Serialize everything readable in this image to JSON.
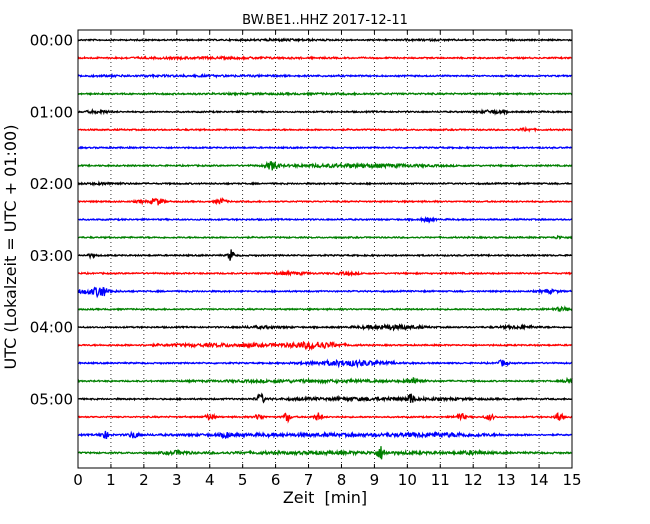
{
  "chart_data": {
    "type": "line",
    "title": "BW.BE1..HHZ 2017-12-11",
    "xlabel": "Zeit  [min]",
    "ylabel": "UTC (Lokalzeit = UTC + 01:00)",
    "xlim": [
      0,
      15
    ],
    "xticks": [
      0,
      1,
      2,
      3,
      4,
      5,
      6,
      7,
      8,
      9,
      10,
      11,
      12,
      13,
      14,
      15
    ],
    "xtick_labels": [
      "0",
      "1",
      "2",
      "3",
      "4",
      "5",
      "6",
      "7",
      "8",
      "9",
      "10",
      "11",
      "12",
      "13",
      "14",
      "15"
    ],
    "ytick_labels": [
      "00:00",
      "01:00",
      "02:00",
      "03:00",
      "04:00",
      "05:00"
    ],
    "grid": "vertical dotted",
    "color_cycle": [
      "#000000",
      "#ff0000",
      "#0000ff",
      "#008000"
    ],
    "rows": [
      {
        "start": "00:00",
        "color": "#000000",
        "events": [
          {
            "t": 6.3,
            "amp": 0.5,
            "width": 1.6
          },
          {
            "t": 10.6,
            "amp": 0.3,
            "width": 1.0
          }
        ]
      },
      {
        "start": "00:15",
        "color": "#ff0000",
        "events": [
          {
            "t": 4.0,
            "amp": 0.5,
            "width": 4.0
          }
        ]
      },
      {
        "start": "00:30",
        "color": "#0000ff",
        "events": [
          {
            "t": 3.0,
            "amp": 0.4,
            "width": 6.0
          }
        ]
      },
      {
        "start": "00:45",
        "color": "#008000",
        "events": [
          {
            "t": 7.0,
            "amp": 0.3,
            "width": 6.0
          }
        ]
      },
      {
        "start": "01:00",
        "color": "#000000",
        "events": [
          {
            "t": 0.6,
            "amp": 1.2,
            "width": 0.5
          },
          {
            "t": 12.6,
            "amp": 1.5,
            "width": 0.5
          }
        ]
      },
      {
        "start": "01:15",
        "color": "#ff0000",
        "events": [
          {
            "t": 13.6,
            "amp": 1.2,
            "width": 0.3
          }
        ]
      },
      {
        "start": "01:30",
        "color": "#0000ff",
        "events": []
      },
      {
        "start": "01:45",
        "color": "#008000",
        "events": [
          {
            "t": 5.9,
            "amp": 4.0,
            "width": 0.25
          },
          {
            "t": 8.5,
            "amp": 1.5,
            "width": 3.0
          }
        ]
      },
      {
        "start": "02:00",
        "color": "#000000",
        "events": [
          {
            "t": 0.8,
            "amp": 0.6,
            "width": 1.0
          }
        ]
      },
      {
        "start": "02:15",
        "color": "#ff0000",
        "events": [
          {
            "t": 2.4,
            "amp": 3.5,
            "width": 0.25
          },
          {
            "t": 4.35,
            "amp": 2.5,
            "width": 0.2
          },
          {
            "t": 1.9,
            "amp": 1.2,
            "width": 0.2
          }
        ]
      },
      {
        "start": "02:30",
        "color": "#0000ff",
        "events": [
          {
            "t": 10.6,
            "amp": 2.0,
            "width": 0.25
          }
        ]
      },
      {
        "start": "02:45",
        "color": "#008000",
        "events": [
          {
            "t": 14.6,
            "amp": 1.2,
            "width": 0.2
          }
        ]
      },
      {
        "start": "03:00",
        "color": "#000000",
        "events": [
          {
            "t": 4.65,
            "amp": 6.0,
            "width": 0.12
          },
          {
            "t": 0.4,
            "amp": 1.5,
            "width": 0.2
          }
        ]
      },
      {
        "start": "03:15",
        "color": "#ff0000",
        "events": [
          {
            "t": 6.5,
            "amp": 1.0,
            "width": 0.8
          },
          {
            "t": 8.2,
            "amp": 1.0,
            "width": 0.5
          }
        ]
      },
      {
        "start": "03:30",
        "color": "#0000ff",
        "events": [
          {
            "t": 0.4,
            "amp": 2.5,
            "width": 0.8
          },
          {
            "t": 0.7,
            "amp": 4.5,
            "width": 0.2
          },
          {
            "t": 14.3,
            "amp": 1.5,
            "width": 0.4
          }
        ]
      },
      {
        "start": "03:45",
        "color": "#008000",
        "events": [
          {
            "t": 14.7,
            "amp": 1.5,
            "width": 0.4
          }
        ]
      },
      {
        "start": "04:00",
        "color": "#000000",
        "events": [
          {
            "t": 9.5,
            "amp": 2.0,
            "width": 1.2
          },
          {
            "t": 5.6,
            "amp": 0.8,
            "width": 1.0
          },
          {
            "t": 13.4,
            "amp": 1.2,
            "width": 0.8
          }
        ]
      },
      {
        "start": "04:15",
        "color": "#ff0000",
        "events": [
          {
            "t": 7.2,
            "amp": 3.0,
            "width": 1.0
          },
          {
            "t": 4.6,
            "amp": 1.2,
            "width": 3.0
          }
        ]
      },
      {
        "start": "04:30",
        "color": "#0000ff",
        "events": [
          {
            "t": 8.2,
            "amp": 2.5,
            "width": 1.6
          },
          {
            "t": 12.9,
            "amp": 3.0,
            "width": 0.2
          }
        ]
      },
      {
        "start": "04:45",
        "color": "#008000",
        "events": [
          {
            "t": 10.2,
            "amp": 2.5,
            "width": 0.3
          },
          {
            "t": 14.95,
            "amp": 4.0,
            "width": 0.2
          },
          {
            "t": 7.0,
            "amp": 1.0,
            "width": 4.0
          }
        ]
      },
      {
        "start": "05:00",
        "color": "#000000",
        "events": [
          {
            "t": 5.55,
            "amp": 5.0,
            "width": 0.15
          },
          {
            "t": 10.1,
            "amp": 5.0,
            "width": 0.15
          },
          {
            "t": 9.0,
            "amp": 1.2,
            "width": 4.0
          }
        ]
      },
      {
        "start": "05:15",
        "color": "#ff0000",
        "events": [
          {
            "t": 4.0,
            "amp": 3.0,
            "width": 0.2
          },
          {
            "t": 6.35,
            "amp": 4.5,
            "width": 0.15
          },
          {
            "t": 7.3,
            "amp": 4.0,
            "width": 0.15
          },
          {
            "t": 11.6,
            "amp": 3.5,
            "width": 0.2
          },
          {
            "t": 14.6,
            "amp": 5.0,
            "width": 0.15
          },
          {
            "t": 5.5,
            "amp": 2.5,
            "width": 0.2
          },
          {
            "t": 12.5,
            "amp": 2.5,
            "width": 0.2
          }
        ]
      },
      {
        "start": "05:30",
        "color": "#0000ff",
        "events": [
          {
            "t": 0.8,
            "amp": 3.5,
            "width": 0.2
          },
          {
            "t": 1.7,
            "amp": 3.0,
            "width": 0.2
          },
          {
            "t": 4.5,
            "amp": 2.5,
            "width": 0.2
          },
          {
            "t": 11.0,
            "amp": 1.5,
            "width": 2.0
          },
          {
            "t": 7.0,
            "amp": 1.0,
            "width": 6.0
          }
        ]
      },
      {
        "start": "05:45",
        "color": "#008000",
        "events": [
          {
            "t": 9.2,
            "amp": 6.0,
            "width": 0.15
          },
          {
            "t": 3.0,
            "amp": 1.5,
            "width": 0.5
          },
          {
            "t": 12.0,
            "amp": 1.2,
            "width": 0.5
          },
          {
            "t": 8.0,
            "amp": 1.0,
            "width": 6.0
          }
        ]
      }
    ]
  }
}
